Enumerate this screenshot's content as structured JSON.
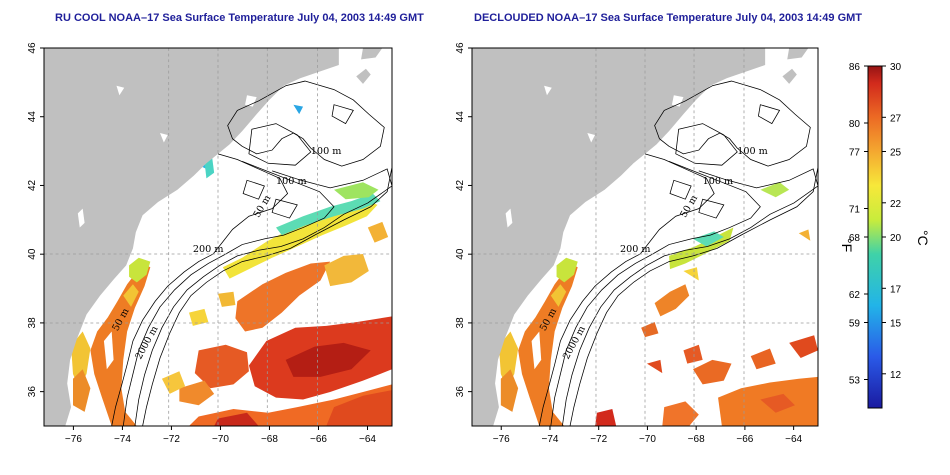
{
  "panels": [
    {
      "id": "left",
      "title": "RU COOL NOAA–17 Sea Surface Temperature July 04, 2003 14:49 GMT",
      "contour_labels": [
        "100 m",
        "100 m",
        "50 m",
        "200 m",
        "50 m",
        "2000 m"
      ]
    },
    {
      "id": "right",
      "title": "DECLOUDED NOAA–17 Sea Surface Temperature July 04, 2003 14:49 GMT",
      "contour_labels": [
        "100 m",
        "100 m",
        "50 m",
        "200 m",
        "50 m",
        "2000 m"
      ]
    }
  ],
  "axes": {
    "lon_ticks": [
      "−76",
      "−74",
      "−72",
      "−70",
      "−68",
      "−66",
      "−64"
    ],
    "lat_ticks": [
      "36",
      "38",
      "40",
      "42",
      "44",
      "46"
    ],
    "lon_range": [
      -77.2,
      -63.0
    ],
    "lat_range": [
      35.0,
      46.0
    ]
  },
  "colorbar": {
    "fahrenheit_ticks": [
      "86",
      "80",
      "77",
      "71",
      "68",
      "62",
      "59",
      "53"
    ],
    "celsius_ticks": [
      "30",
      "27",
      "25",
      "22",
      "20",
      "17",
      "15",
      "12"
    ],
    "unit_f": "°F",
    "unit_c": "°C",
    "celsius_range": [
      10,
      30
    ]
  },
  "colors": {
    "land": "#c0c0c0",
    "grid": "#9a9a9a",
    "title": "#1f1f9a"
  }
}
